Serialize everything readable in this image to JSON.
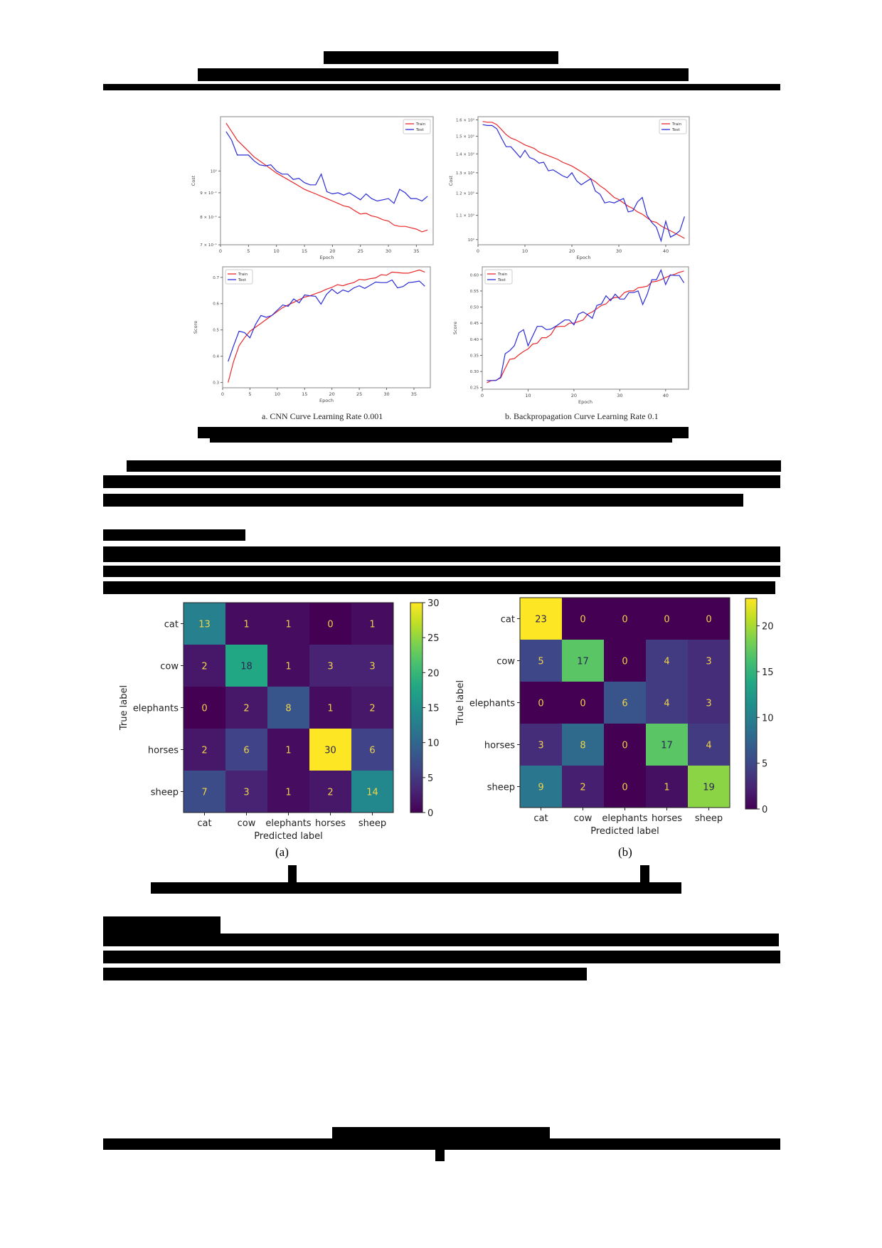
{
  "page": {
    "redacted_header_lines": 2,
    "redacted_body_note": "All running text on the page is redacted as black bars"
  },
  "figure1": {
    "caption_a": "a.     CNN Curve Learning Rate 0.001",
    "caption_b": "b.     Backpropagation Curve Learning Rate 0.1"
  },
  "figure2": {
    "label_a": "(a)",
    "label_b": "(b)"
  },
  "chart_data": [
    {
      "id": "cnn-cost",
      "type": "line",
      "title": "",
      "xlabel": "Epoch",
      "ylabel": "Cost",
      "yscale": "log",
      "xlim": [
        0,
        38
      ],
      "ylim": [
        0.7,
        1.3
      ],
      "xticks": [
        "0",
        "5",
        "10",
        "15",
        "20",
        "25",
        "30",
        "35"
      ],
      "yticks": [
        "7 × 10⁻¹",
        "8 × 10⁻¹",
        "9 × 10⁻¹",
        "10⁰"
      ],
      "legend": {
        "position": "upper right",
        "entries": [
          "Train",
          "Test"
        ]
      },
      "x": [
        1,
        2,
        3,
        4,
        5,
        6,
        7,
        8,
        9,
        10,
        11,
        12,
        13,
        14,
        15,
        16,
        17,
        18,
        19,
        20,
        21,
        22,
        23,
        24,
        25,
        26,
        27,
        28,
        29,
        30,
        31,
        32,
        33,
        34,
        35,
        36,
        37
      ],
      "series": [
        {
          "name": "Train",
          "color": "#e8282b",
          "values": [
            1.26,
            1.21,
            1.16,
            1.13,
            1.1,
            1.07,
            1.05,
            1.03,
            1.01,
            0.99,
            0.975,
            0.96,
            0.945,
            0.93,
            0.915,
            0.905,
            0.895,
            0.885,
            0.875,
            0.865,
            0.855,
            0.845,
            0.84,
            0.825,
            0.812,
            0.815,
            0.805,
            0.8,
            0.79,
            0.785,
            0.77,
            0.765,
            0.765,
            0.76,
            0.755,
            0.745,
            0.752
          ]
        },
        {
          "name": "Test",
          "color": "#2b2bd6",
          "values": [
            1.21,
            1.16,
            1.08,
            1.08,
            1.08,
            1.05,
            1.03,
            1.025,
            1.03,
            1.0,
            0.985,
            0.985,
            0.96,
            0.965,
            0.945,
            0.935,
            0.935,
            0.985,
            0.905,
            0.895,
            0.9,
            0.89,
            0.9,
            0.885,
            0.87,
            0.895,
            0.875,
            0.865,
            0.87,
            0.875,
            0.855,
            0.915,
            0.9,
            0.875,
            0.875,
            0.865,
            0.885
          ]
        }
      ]
    },
    {
      "id": "bp-cost",
      "type": "line",
      "title": "",
      "xlabel": "Epoch",
      "ylabel": "Cost",
      "yscale": "log",
      "xlim": [
        0,
        45
      ],
      "ylim": [
        0.98,
        1.62
      ],
      "xticks": [
        "0",
        "10",
        "20",
        "30",
        "40"
      ],
      "yticks": [
        "10⁰",
        "1.1 × 10⁰",
        "1.2 × 10⁰",
        "1.3 × 10⁰",
        "1.4 × 10⁰",
        "1.5 × 10⁰",
        "1.6 × 10⁰"
      ],
      "legend": {
        "position": "upper right",
        "entries": [
          "Train",
          "Test"
        ]
      },
      "x": [
        1,
        2,
        3,
        4,
        5,
        6,
        7,
        8,
        9,
        10,
        11,
        12,
        13,
        14,
        15,
        16,
        17,
        18,
        19,
        20,
        21,
        22,
        23,
        24,
        25,
        26,
        27,
        28,
        29,
        30,
        31,
        32,
        33,
        34,
        35,
        36,
        37,
        38,
        39,
        40,
        41,
        42,
        43,
        44
      ],
      "series": [
        {
          "name": "Train",
          "color": "#e8282b",
          "values": [
            1.59,
            1.585,
            1.585,
            1.57,
            1.54,
            1.51,
            1.49,
            1.48,
            1.465,
            1.45,
            1.44,
            1.43,
            1.41,
            1.4,
            1.39,
            1.38,
            1.37,
            1.355,
            1.345,
            1.335,
            1.32,
            1.305,
            1.29,
            1.27,
            1.255,
            1.235,
            1.22,
            1.2,
            1.18,
            1.17,
            1.155,
            1.14,
            1.13,
            1.115,
            1.105,
            1.09,
            1.075,
            1.07,
            1.055,
            1.045,
            1.035,
            1.025,
            1.015,
            1.005
          ]
        },
        {
          "name": "Test",
          "color": "#2b2bd6",
          "values": [
            1.57,
            1.565,
            1.565,
            1.545,
            1.49,
            1.44,
            1.44,
            1.41,
            1.38,
            1.42,
            1.38,
            1.37,
            1.35,
            1.355,
            1.31,
            1.315,
            1.3,
            1.285,
            1.275,
            1.3,
            1.26,
            1.24,
            1.255,
            1.27,
            1.21,
            1.195,
            1.155,
            1.16,
            1.155,
            1.165,
            1.175,
            1.115,
            1.12,
            1.16,
            1.18,
            1.1,
            1.07,
            1.05,
            0.995,
            1.075,
            1.01,
            1.02,
            1.035,
            1.095
          ]
        }
      ]
    },
    {
      "id": "cnn-score",
      "type": "line",
      "title": "",
      "xlabel": "Epoch",
      "ylabel": "Score",
      "xlim": [
        0,
        38
      ],
      "ylim": [
        0.28,
        0.74
      ],
      "xticks": [
        "0",
        "5",
        "10",
        "15",
        "20",
        "25",
        "30",
        "35"
      ],
      "yticks": [
        "0.3",
        "0.4",
        "0.5",
        "0.6",
        "0.7"
      ],
      "legend": {
        "position": "upper left",
        "entries": [
          "Train",
          "Test"
        ]
      },
      "x": [
        1,
        2,
        3,
        4,
        5,
        6,
        7,
        8,
        9,
        10,
        11,
        12,
        13,
        14,
        15,
        16,
        17,
        18,
        19,
        20,
        21,
        22,
        23,
        24,
        25,
        26,
        27,
        28,
        29,
        30,
        31,
        32,
        33,
        34,
        35,
        36,
        37
      ],
      "series": [
        {
          "name": "Train",
          "color": "#e8282b",
          "values": [
            0.3,
            0.38,
            0.44,
            0.47,
            0.495,
            0.51,
            0.525,
            0.54,
            0.555,
            0.57,
            0.585,
            0.595,
            0.605,
            0.615,
            0.625,
            0.63,
            0.638,
            0.645,
            0.655,
            0.662,
            0.672,
            0.668,
            0.675,
            0.68,
            0.692,
            0.69,
            0.695,
            0.698,
            0.71,
            0.708,
            0.72,
            0.718,
            0.716,
            0.716,
            0.722,
            0.728,
            0.72
          ]
        },
        {
          "name": "Test",
          "color": "#2b2bd6",
          "values": [
            0.38,
            0.44,
            0.495,
            0.49,
            0.47,
            0.52,
            0.555,
            0.548,
            0.555,
            0.575,
            0.595,
            0.59,
            0.618,
            0.603,
            0.633,
            0.63,
            0.628,
            0.598,
            0.635,
            0.655,
            0.638,
            0.652,
            0.645,
            0.66,
            0.668,
            0.658,
            0.67,
            0.682,
            0.68,
            0.68,
            0.69,
            0.66,
            0.665,
            0.68,
            0.682,
            0.686,
            0.666
          ]
        }
      ]
    },
    {
      "id": "bp-score",
      "type": "line",
      "title": "",
      "xlabel": "Epoch",
      "ylabel": "Score",
      "xlim": [
        0,
        45
      ],
      "ylim": [
        0.245,
        0.625
      ],
      "xticks": [
        "0",
        "10",
        "20",
        "30",
        "40"
      ],
      "yticks": [
        "0.25",
        "0.30",
        "0.35",
        "0.40",
        "0.45",
        "0.50",
        "0.55",
        "0.60"
      ],
      "legend": {
        "position": "upper left",
        "entries": [
          "Train",
          "Test"
        ]
      },
      "x": [
        1,
        2,
        3,
        4,
        5,
        6,
        7,
        8,
        9,
        10,
        11,
        12,
        13,
        14,
        15,
        16,
        17,
        18,
        19,
        20,
        21,
        22,
        23,
        24,
        25,
        26,
        27,
        28,
        29,
        30,
        31,
        32,
        33,
        34,
        35,
        36,
        37,
        38,
        39,
        40,
        41,
        42,
        43,
        44
      ],
      "series": [
        {
          "name": "Train",
          "color": "#e8282b",
          "values": [
            0.265,
            0.272,
            0.273,
            0.28,
            0.31,
            0.338,
            0.34,
            0.352,
            0.362,
            0.37,
            0.385,
            0.388,
            0.405,
            0.405,
            0.415,
            0.438,
            0.44,
            0.44,
            0.45,
            0.45,
            0.455,
            0.46,
            0.478,
            0.485,
            0.495,
            0.505,
            0.51,
            0.525,
            0.53,
            0.53,
            0.545,
            0.55,
            0.55,
            0.56,
            0.562,
            0.565,
            0.578,
            0.58,
            0.585,
            0.592,
            0.598,
            0.602,
            0.608,
            0.612
          ]
        },
        {
          "name": "Test",
          "color": "#2b2bd6",
          "values": [
            0.272,
            0.272,
            0.272,
            0.282,
            0.355,
            0.365,
            0.38,
            0.42,
            0.43,
            0.38,
            0.41,
            0.44,
            0.44,
            0.43,
            0.432,
            0.44,
            0.45,
            0.46,
            0.46,
            0.445,
            0.478,
            0.485,
            0.476,
            0.465,
            0.505,
            0.51,
            0.535,
            0.52,
            0.54,
            0.525,
            0.525,
            0.545,
            0.545,
            0.55,
            0.508,
            0.54,
            0.585,
            0.585,
            0.615,
            0.57,
            0.6,
            0.598,
            0.598,
            0.575
          ]
        }
      ]
    },
    {
      "id": "confusion-a",
      "type": "heatmap",
      "title": "",
      "xlabel": "Predicted label",
      "ylabel": "True label",
      "categories": [
        "cat",
        "cow",
        "elephants",
        "horses",
        "sheep"
      ],
      "values": [
        [
          13,
          1,
          1,
          0,
          1
        ],
        [
          2,
          18,
          1,
          3,
          3
        ],
        [
          0,
          2,
          8,
          1,
          2
        ],
        [
          2,
          6,
          1,
          30,
          6
        ],
        [
          7,
          3,
          1,
          2,
          14
        ]
      ],
      "colormap": "viridis",
      "colorbar": {
        "min": 0,
        "max": 30,
        "ticks": [
          "0",
          "5",
          "10",
          "15",
          "20",
          "25",
          "30"
        ]
      }
    },
    {
      "id": "confusion-b",
      "type": "heatmap",
      "title": "",
      "xlabel": "Predicted label",
      "ylabel": "True label",
      "categories": [
        "cat",
        "cow",
        "elephants",
        "horses",
        "sheep"
      ],
      "values": [
        [
          23,
          0,
          0,
          0,
          0
        ],
        [
          5,
          17,
          0,
          4,
          3
        ],
        [
          0,
          0,
          6,
          4,
          3
        ],
        [
          3,
          8,
          0,
          17,
          4
        ],
        [
          9,
          2,
          0,
          1,
          19
        ]
      ],
      "colormap": "viridis",
      "colorbar": {
        "min": 0,
        "max": 23,
        "ticks": [
          "0",
          "5",
          "10",
          "15",
          "20"
        ]
      }
    }
  ]
}
